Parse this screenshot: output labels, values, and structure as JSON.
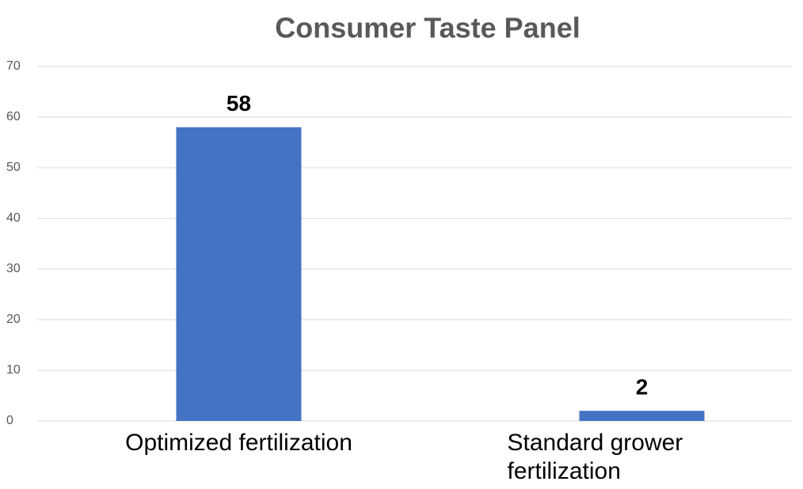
{
  "chart_data": {
    "type": "bar",
    "title": "Consumer Taste Panel",
    "categories": [
      "Optimized fertilization",
      "Standard grower fertilization"
    ],
    "values": [
      58,
      2
    ],
    "color": "#4472c4",
    "ylim": [
      0,
      70
    ],
    "yticks": [
      0,
      10,
      20,
      30,
      40,
      50,
      60,
      70
    ],
    "grid": true
  }
}
